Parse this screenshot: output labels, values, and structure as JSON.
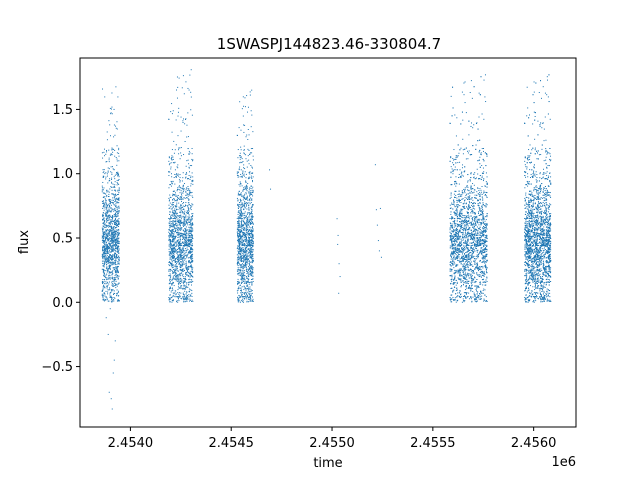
{
  "chart_data": {
    "type": "scatter",
    "title": "1SWASPJ144823.46-330804.7",
    "xlabel": "time",
    "ylabel": "flux",
    "x_offset_label": "1e6",
    "xlim": [
      2453750,
      2456210
    ],
    "ylim": [
      -0.97,
      1.9
    ],
    "x_ticks": [
      2454000,
      2454500,
      2455000,
      2455500,
      2456000
    ],
    "x_tick_labels": [
      "2.4540",
      "2.4545",
      "2.4550",
      "2.4555",
      "2.4560"
    ],
    "y_ticks": [
      -0.5,
      0.0,
      0.5,
      1.0,
      1.5
    ],
    "y_tick_labels": [
      "−0.5",
      "0.0",
      "0.5",
      "1.0",
      "1.5"
    ],
    "grid": false,
    "point_color": "#1f77b4",
    "seasons": [
      {
        "x_range": [
          2453860,
          2453945
        ],
        "y_range": [
          0.0,
          1.7
        ],
        "n_points": 1300
      },
      {
        "x_range": [
          2454190,
          2454310
        ],
        "y_range": [
          0.0,
          1.82
        ],
        "n_points": 1600
      },
      {
        "x_range": [
          2454530,
          2454610
        ],
        "y_range": [
          0.0,
          1.66
        ],
        "n_points": 1300
      },
      {
        "x_range": [
          2455585,
          2455770
        ],
        "y_range": [
          0.0,
          1.78
        ],
        "n_points": 2600
      },
      {
        "x_range": [
          2455955,
          2456085
        ],
        "y_range": [
          0.0,
          1.78
        ],
        "n_points": 2400
      }
    ],
    "sparse_points": [
      {
        "x": 2453895,
        "y": -0.7
      },
      {
        "x": 2453905,
        "y": -0.75
      },
      {
        "x": 2453910,
        "y": -0.83
      },
      {
        "x": 2453915,
        "y": -0.55
      },
      {
        "x": 2453920,
        "y": -0.45
      },
      {
        "x": 2453880,
        "y": -0.12
      },
      {
        "x": 2453890,
        "y": -0.25
      },
      {
        "x": 2453900,
        "y": -0.05
      },
      {
        "x": 2453925,
        "y": -0.3
      },
      {
        "x": 2454690,
        "y": 1.03
      },
      {
        "x": 2454695,
        "y": 0.88
      },
      {
        "x": 2455025,
        "y": 0.65
      },
      {
        "x": 2455030,
        "y": 0.52
      },
      {
        "x": 2455028,
        "y": 0.45
      },
      {
        "x": 2455035,
        "y": 0.3
      },
      {
        "x": 2455033,
        "y": 0.07
      },
      {
        "x": 2455040,
        "y": 0.2
      },
      {
        "x": 2455215,
        "y": 1.07
      },
      {
        "x": 2455220,
        "y": 0.72
      },
      {
        "x": 2455240,
        "y": 0.73
      },
      {
        "x": 2455225,
        "y": 0.6
      },
      {
        "x": 2455230,
        "y": 0.48
      },
      {
        "x": 2455235,
        "y": 0.4
      },
      {
        "x": 2455245,
        "y": 0.35
      }
    ]
  }
}
